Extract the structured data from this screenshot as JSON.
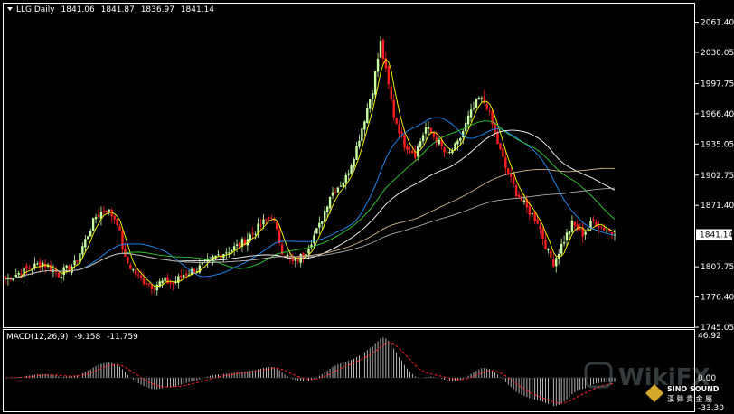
{
  "header": {
    "symbol": "LLG,Daily",
    "open": "1841.06",
    "high": "1841.87",
    "low": "1836.97",
    "close": "1841.14"
  },
  "price_axis": {
    "ticks": [
      "2061.40",
      "2030.05",
      "1997.75",
      "1966.40",
      "1935.05",
      "1902.75",
      "1871.40",
      "1807.75",
      "1776.40",
      "1745.05"
    ],
    "current_label": "1841.14",
    "range": [
      1745.05,
      2075
    ]
  },
  "macd": {
    "label": "MACD(12,26,9)",
    "macd_value": "-9.158",
    "signal_value": "-11.759",
    "ticks": [
      "46.92",
      "0.00",
      "-33.30"
    ],
    "range": [
      -33.3,
      46.92
    ]
  },
  "watermark": {
    "brand": "WikiFX",
    "company": "SINO SOUND",
    "company_sub": "漢 聲 貴 金 屬"
  },
  "colors": {
    "background": "#000000",
    "bull": "#c8ffa0",
    "bear": "#ff1e1e",
    "ma_fast": "#ffff00",
    "ma_blue": "#1e90ff",
    "ma_green": "#32cd32",
    "ma_white": "#ffffff",
    "ma_tan": "#d2b48c",
    "ma_slow": "#aaaaaa",
    "macd_hist": "#e0e0e0",
    "macd_signal": "#ff2020"
  },
  "chart_data": {
    "type": "candlestick",
    "title": "LLG,Daily",
    "ylim": [
      1745.05,
      2075
    ],
    "last": 1841.14,
    "anchors": [
      [
        0,
        1795
      ],
      [
        8,
        1805
      ],
      [
        14,
        1812
      ],
      [
        20,
        1800
      ],
      [
        26,
        1810
      ],
      [
        34,
        1860
      ],
      [
        38,
        1868
      ],
      [
        42,
        1855
      ],
      [
        45,
        1815
      ],
      [
        50,
        1797
      ],
      [
        55,
        1788
      ],
      [
        60,
        1793
      ],
      [
        63,
        1790
      ],
      [
        67,
        1800
      ],
      [
        72,
        1805
      ],
      [
        80,
        1820
      ],
      [
        88,
        1830
      ],
      [
        95,
        1848
      ],
      [
        100,
        1862
      ],
      [
        104,
        1825
      ],
      [
        108,
        1812
      ],
      [
        112,
        1820
      ],
      [
        118,
        1850
      ],
      [
        122,
        1882
      ],
      [
        128,
        1900
      ],
      [
        132,
        1932
      ],
      [
        136,
        1972
      ],
      [
        138,
        1992
      ],
      [
        141,
        2040
      ],
      [
        143,
        2010
      ],
      [
        146,
        1965
      ],
      [
        150,
        1935
      ],
      [
        154,
        1925
      ],
      [
        158,
        1952
      ],
      [
        162,
        1940
      ],
      [
        166,
        1922
      ],
      [
        170,
        1935
      ],
      [
        174,
        1962
      ],
      [
        178,
        1982
      ],
      [
        181,
        1975
      ],
      [
        184,
        1945
      ],
      [
        188,
        1910
      ],
      [
        192,
        1885
      ],
      [
        196,
        1868
      ],
      [
        200,
        1855
      ],
      [
        204,
        1822
      ],
      [
        206,
        1812
      ],
      [
        209,
        1830
      ],
      [
        213,
        1852
      ],
      [
        217,
        1842
      ],
      [
        221,
        1855
      ],
      [
        225,
        1848
      ],
      [
        229,
        1841
      ]
    ]
  }
}
